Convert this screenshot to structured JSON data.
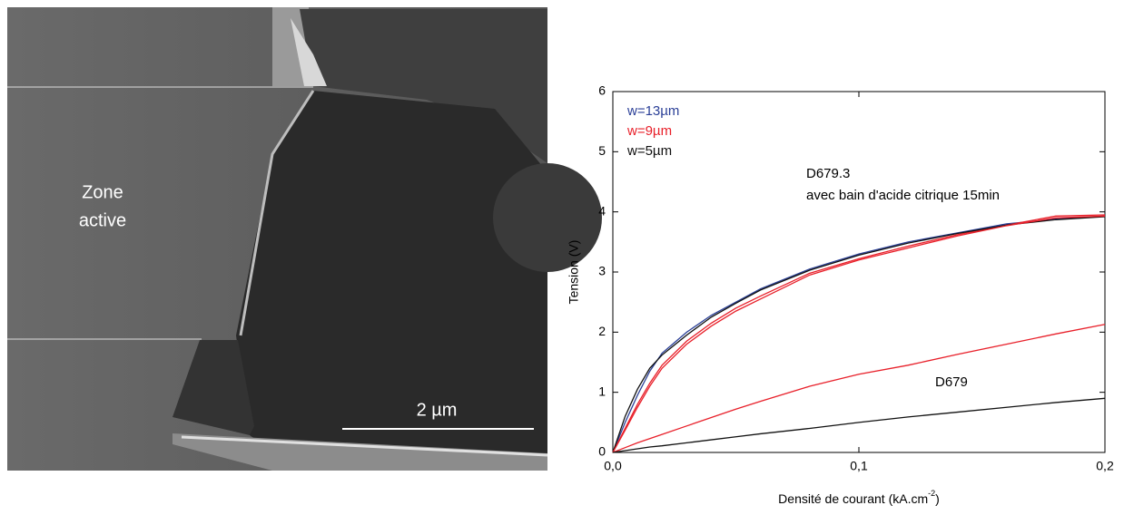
{
  "image_annotations": {
    "zone_label": [
      "Zone",
      "active"
    ],
    "scale_bar": "2 µm"
  },
  "chart_data": {
    "type": "line",
    "xlabel_parts": [
      "Densité de courant (kA.cm",
      "-2",
      ")"
    ],
    "ylabel": "Tension (V)",
    "x": [
      0,
      0.005,
      0.01,
      0.015,
      0.02,
      0.03,
      0.04,
      0.05,
      0.06,
      0.08,
      0.1,
      0.12,
      0.14,
      0.16,
      0.18,
      0.2
    ],
    "series": [
      {
        "name": "w=13µm",
        "color": "#2a3f97",
        "values": [
          0,
          0.5,
          0.95,
          1.35,
          1.65,
          2.0,
          2.28,
          2.5,
          2.72,
          3.05,
          3.3,
          3.5,
          3.65,
          3.8,
          3.88,
          3.93
        ]
      },
      {
        "name": "w=9µm",
        "color": "#e8202a",
        "values": [
          0,
          0.4,
          0.8,
          1.15,
          1.45,
          1.85,
          2.15,
          2.4,
          2.6,
          2.98,
          3.22,
          3.43,
          3.62,
          3.78,
          3.93,
          3.95
        ]
      },
      {
        "name": "w=5µm",
        "color": "#111111",
        "values": [
          0,
          0.6,
          1.05,
          1.4,
          1.62,
          1.95,
          2.25,
          2.48,
          2.7,
          3.03,
          3.28,
          3.48,
          3.64,
          3.78,
          3.87,
          3.92
        ]
      },
      {
        "color": "#e8202a",
        "values": [
          0,
          0.37,
          0.75,
          1.1,
          1.4,
          1.8,
          2.1,
          2.35,
          2.55,
          2.95,
          3.2,
          3.4,
          3.6,
          3.77,
          3.9,
          3.93
        ]
      },
      {
        "color": "#e8202a",
        "values": [
          0,
          0.08,
          0.16,
          0.23,
          0.3,
          0.44,
          0.58,
          0.72,
          0.85,
          1.1,
          1.3,
          1.45,
          1.63,
          1.8,
          1.97,
          2.13
        ]
      },
      {
        "color": "#111111",
        "values": [
          0,
          0.03,
          0.06,
          0.09,
          0.11,
          0.16,
          0.21,
          0.26,
          0.31,
          0.4,
          0.5,
          0.59,
          0.67,
          0.75,
          0.83,
          0.9
        ]
      }
    ],
    "annotations": [
      "D679.3",
      "avec bain d'acide citrique 15min",
      "D679"
    ],
    "xlim": [
      0,
      0.2
    ],
    "xticks": [
      {
        "value": 0,
        "label": "0,0"
      },
      {
        "value": 0.1,
        "label": "0,1"
      },
      {
        "value": 0.2,
        "label": "0,2"
      }
    ],
    "ylim": [
      0,
      6
    ],
    "yticks": [
      0,
      1,
      2,
      3,
      4,
      5,
      6
    ],
    "legend": "upper left"
  }
}
